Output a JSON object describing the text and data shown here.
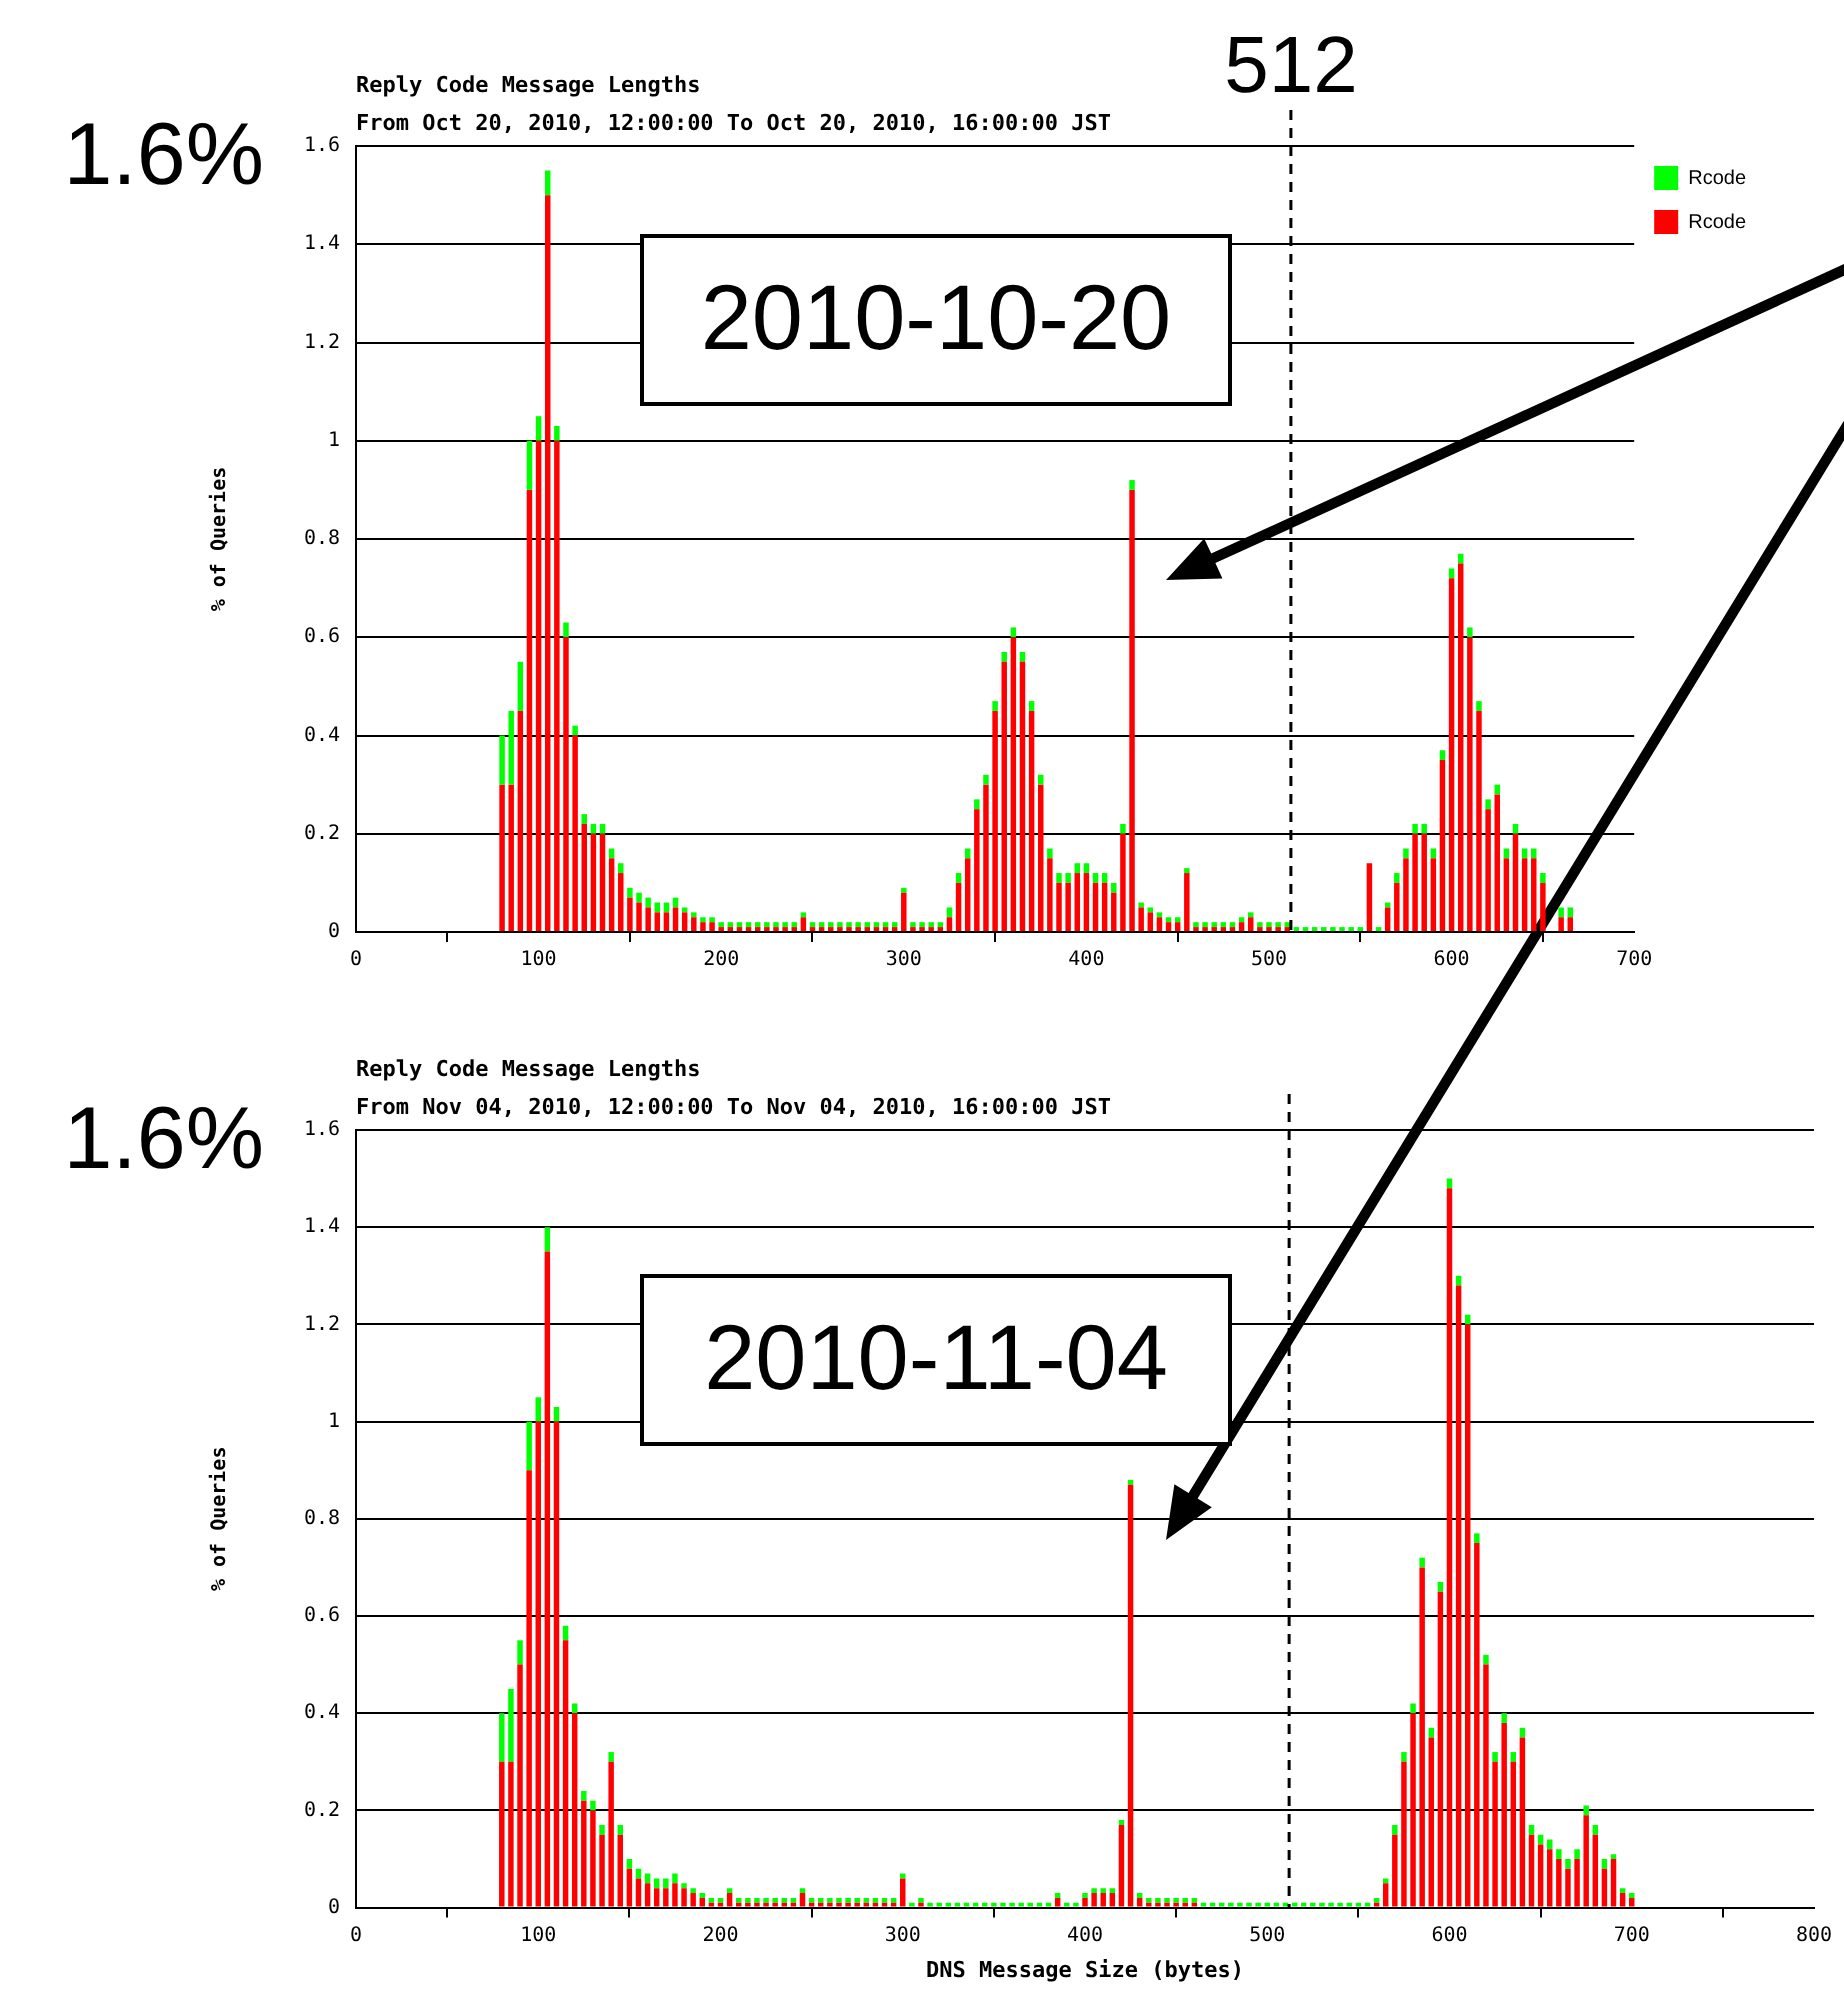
{
  "chart_data": [
    {
      "type": "bar",
      "title": "Reply Code Message Lengths",
      "subtitle": "From Oct 20, 2010, 12:00:00 To Oct 20, 2010, 16:00:00 JST",
      "ylabel": "% of Queries",
      "x": [
        80,
        85,
        90,
        95,
        100,
        105,
        110,
        115,
        120,
        125,
        130,
        135,
        140,
        145,
        150,
        155,
        160,
        165,
        170,
        175,
        180,
        185,
        190,
        195,
        200,
        205,
        210,
        215,
        220,
        225,
        230,
        235,
        240,
        245,
        250,
        255,
        260,
        265,
        270,
        275,
        280,
        285,
        290,
        295,
        300,
        305,
        310,
        315,
        320,
        325,
        330,
        335,
        340,
        345,
        350,
        355,
        360,
        365,
        370,
        375,
        380,
        385,
        390,
        395,
        400,
        405,
        410,
        415,
        420,
        425,
        430,
        435,
        440,
        445,
        450,
        455,
        460,
        465,
        470,
        475,
        480,
        485,
        490,
        495,
        500,
        505,
        510,
        515,
        520,
        525,
        530,
        535,
        540,
        545,
        550,
        555,
        560,
        565,
        570,
        575,
        580,
        585,
        590,
        595,
        600,
        605,
        610,
        615,
        620,
        625,
        630,
        635,
        640,
        645,
        650,
        655,
        660,
        665,
        670,
        675,
        680,
        685,
        690,
        695,
        700
      ],
      "series": [
        {
          "name": "Rcode",
          "color": "#ff0000",
          "values": [
            0.3,
            0.3,
            0.45,
            0.9,
            1.0,
            1.5,
            1.0,
            0.6,
            0.4,
            0.22,
            0.2,
            0.2,
            0.15,
            0.12,
            0.07,
            0.06,
            0.05,
            0.04,
            0.04,
            0.05,
            0.04,
            0.03,
            0.02,
            0.02,
            0.01,
            0.01,
            0.01,
            0.01,
            0.01,
            0.01,
            0.01,
            0.01,
            0.01,
            0.03,
            0.01,
            0.01,
            0.01,
            0.01,
            0.01,
            0.01,
            0.01,
            0.01,
            0.01,
            0.01,
            0.08,
            0.01,
            0.01,
            0.01,
            0.01,
            0.03,
            0.1,
            0.15,
            0.25,
            0.3,
            0.45,
            0.55,
            0.6,
            0.55,
            0.45,
            0.3,
            0.15,
            0.1,
            0.1,
            0.12,
            0.12,
            0.1,
            0.1,
            0.08,
            0.2,
            0.9,
            0.05,
            0.04,
            0.03,
            0.02,
            0.02,
            0.12,
            0.01,
            0.01,
            0.01,
            0.01,
            0.01,
            0.02,
            0.03,
            0.01,
            0.01,
            0.01,
            0.01,
            0,
            0,
            0,
            0,
            0,
            0,
            0,
            0,
            0.14,
            0,
            0.05,
            0.1,
            0.15,
            0.2,
            0.2,
            0.15,
            0.35,
            0.72,
            0.75,
            0.6,
            0.45,
            0.25,
            0.28,
            0.15,
            0.2,
            0.15,
            0.15,
            0.1,
            null,
            0.03,
            0.03,
            0,
            0,
            0,
            0,
            0,
            0,
            0
          ]
        },
        {
          "name": "Rcode",
          "color": "#00ff00",
          "values": [
            0.1,
            0.15,
            0.1,
            0.1,
            0.05,
            0.05,
            0.03,
            0.03,
            0.02,
            0.02,
            0.02,
            0.02,
            0.02,
            0.02,
            0.02,
            0.02,
            0.02,
            0.02,
            0.02,
            0.02,
            0.01,
            0.01,
            0.01,
            0.01,
            0.01,
            0.01,
            0.01,
            0.01,
            0.01,
            0.01,
            0.01,
            0.01,
            0.01,
            0.01,
            0.01,
            0.01,
            0.01,
            0.01,
            0.01,
            0.01,
            0.01,
            0.01,
            0.01,
            0.01,
            0.01,
            0.01,
            0.01,
            0.01,
            0.01,
            0.02,
            0.02,
            0.02,
            0.02,
            0.02,
            0.02,
            0.02,
            0.02,
            0.02,
            0.02,
            0.02,
            0.02,
            0.02,
            0.02,
            0.02,
            0.02,
            0.02,
            0.02,
            0.02,
            0.02,
            0.02,
            0.01,
            0.01,
            0.01,
            0.01,
            0.01,
            0.01,
            0.01,
            0.01,
            0.01,
            0.01,
            0.01,
            0.01,
            0.01,
            0.01,
            0.01,
            0.01,
            0.01,
            0.01,
            0.01,
            0.01,
            0.01,
            0.01,
            0.01,
            0.01,
            0.01,
            0,
            0.01,
            0.01,
            0.02,
            0.02,
            0.02,
            0.02,
            0.02,
            0.02,
            0.02,
            0.02,
            0.02,
            0.02,
            0.02,
            0.02,
            0.02,
            0.02,
            0.02,
            0.02,
            0.02,
            null,
            0.02,
            0.02,
            0,
            0,
            0,
            0,
            0,
            0,
            0
          ]
        }
      ],
      "xlim": [
        0,
        700
      ],
      "xticks": [
        0,
        100,
        200,
        300,
        400,
        500,
        600,
        700
      ],
      "ylim": [
        0,
        1.6
      ],
      "yticks": [
        0,
        0.2,
        0.4,
        0.6,
        0.8,
        1,
        1.2,
        1.4,
        1.6
      ],
      "ref_lines": [
        {
          "axis": "x",
          "value": 512,
          "label": "512",
          "line_style": "dashed",
          "color": "#000000"
        }
      ],
      "annotations": [
        "1.6%",
        "2010-10-20"
      ],
      "stacked": true,
      "grid": "y",
      "legend": "top right"
    },
    {
      "type": "bar",
      "title": "Reply Code Message Lengths",
      "subtitle": "From Nov 04, 2010, 12:00:00 To Nov 04, 2010, 16:00:00 JST",
      "xlabel": "DNS Message Size (bytes)",
      "ylabel": "% of Queries",
      "x": [
        80,
        85,
        90,
        95,
        100,
        105,
        110,
        115,
        120,
        125,
        130,
        135,
        140,
        145,
        150,
        155,
        160,
        165,
        170,
        175,
        180,
        185,
        190,
        195,
        200,
        205,
        210,
        215,
        220,
        225,
        230,
        235,
        240,
        245,
        250,
        255,
        260,
        265,
        270,
        275,
        280,
        285,
        290,
        295,
        300,
        305,
        310,
        315,
        320,
        325,
        330,
        335,
        340,
        345,
        350,
        355,
        360,
        365,
        370,
        375,
        380,
        385,
        390,
        395,
        400,
        405,
        410,
        415,
        420,
        425,
        430,
        435,
        440,
        445,
        450,
        455,
        460,
        465,
        470,
        475,
        480,
        485,
        490,
        495,
        500,
        505,
        510,
        515,
        520,
        525,
        530,
        535,
        540,
        545,
        550,
        555,
        560,
        565,
        570,
        575,
        580,
        585,
        590,
        595,
        600,
        605,
        610,
        615,
        620,
        625,
        630,
        635,
        640,
        645,
        650,
        655,
        660,
        665,
        670,
        675,
        680,
        685,
        690,
        695,
        700
      ],
      "series": [
        {
          "color": "#ff0000",
          "values": [
            0.3,
            0.3,
            0.5,
            0.9,
            1.0,
            1.35,
            1.0,
            0.55,
            0.4,
            0.22,
            0.2,
            0.15,
            0.3,
            0.15,
            0.08,
            0.06,
            0.05,
            0.04,
            0.04,
            0.05,
            0.04,
            0.03,
            0.02,
            0.01,
            0.01,
            0.03,
            0.01,
            0.01,
            0.01,
            0.01,
            0.01,
            0.01,
            0.01,
            0.03,
            0.01,
            0.01,
            0.01,
            0.01,
            0.01,
            0.01,
            0.01,
            0.01,
            0.01,
            0.01,
            0.06,
            0,
            0.01,
            0,
            0,
            0,
            0,
            0,
            0,
            0,
            0,
            0,
            0,
            0,
            0,
            0,
            0,
            0.02,
            0,
            0,
            0.02,
            0.03,
            0.03,
            0.03,
            0.17,
            0.87,
            0.02,
            0.01,
            0.01,
            0.01,
            0.01,
            0.01,
            0.01,
            0,
            0,
            0,
            0,
            0,
            0,
            0,
            0,
            0,
            0,
            0,
            0,
            0,
            0,
            0,
            0,
            0,
            0,
            0,
            0.01,
            0.05,
            0.15,
            0.3,
            0.4,
            0.7,
            0.35,
            0.65,
            1.48,
            1.28,
            1.2,
            0.75,
            0.5,
            0.3,
            0.38,
            0.3,
            0.35,
            0.15,
            0.13,
            0.12,
            0.1,
            0.08,
            0.1,
            0.19,
            0.15,
            0.08,
            0.1,
            0.03,
            0.02
          ]
        },
        {
          "color": "#00ff00",
          "values": [
            0.1,
            0.15,
            0.05,
            0.1,
            0.05,
            0.05,
            0.03,
            0.03,
            0.02,
            0.02,
            0.02,
            0.02,
            0.02,
            0.02,
            0.02,
            0.02,
            0.02,
            0.02,
            0.02,
            0.02,
            0.01,
            0.01,
            0.01,
            0.01,
            0.01,
            0.01,
            0.01,
            0.01,
            0.01,
            0.01,
            0.01,
            0.01,
            0.01,
            0.01,
            0.01,
            0.01,
            0.01,
            0.01,
            0.01,
            0.01,
            0.01,
            0.01,
            0.01,
            0.01,
            0.01,
            0.01,
            0.01,
            0.01,
            0.01,
            0.01,
            0.01,
            0.01,
            0.01,
            0.01,
            0.01,
            0.01,
            0.01,
            0.01,
            0.01,
            0.01,
            0.01,
            0.01,
            0.01,
            0.01,
            0.01,
            0.01,
            0.01,
            0.01,
            0.01,
            0.01,
            0.01,
            0.01,
            0.01,
            0.01,
            0.01,
            0.01,
            0.01,
            0.01,
            0.01,
            0.01,
            0.01,
            0.01,
            0.01,
            0.01,
            0.01,
            0.01,
            0.01,
            0.01,
            0.01,
            0.01,
            0.01,
            0.01,
            0.01,
            0.01,
            0.01,
            0.01,
            0.01,
            0.01,
            0.02,
            0.02,
            0.02,
            0.02,
            0.02,
            0.02,
            0.02,
            0.02,
            0.02,
            0.02,
            0.02,
            0.02,
            0.02,
            0.02,
            0.02,
            0.02,
            0.02,
            0.02,
            0.02,
            0.02,
            0.02,
            0.02,
            0.02,
            0.02,
            0.01,
            0.01,
            0.01
          ]
        }
      ],
      "xlim": [
        0,
        800
      ],
      "xticks": [
        0,
        100,
        200,
        300,
        400,
        500,
        600,
        700,
        800
      ],
      "ylim": [
        0,
        1.6
      ],
      "yticks": [
        0,
        0.2,
        0.4,
        0.6,
        0.8,
        1,
        1.2,
        1.4,
        1.6
      ],
      "ref_lines": [
        {
          "axis": "x",
          "value": 512,
          "line_style": "dashed",
          "color": "#000000"
        }
      ],
      "annotations": [
        "1.6%",
        "2010-11-04"
      ],
      "stacked": true,
      "grid": "y"
    }
  ]
}
